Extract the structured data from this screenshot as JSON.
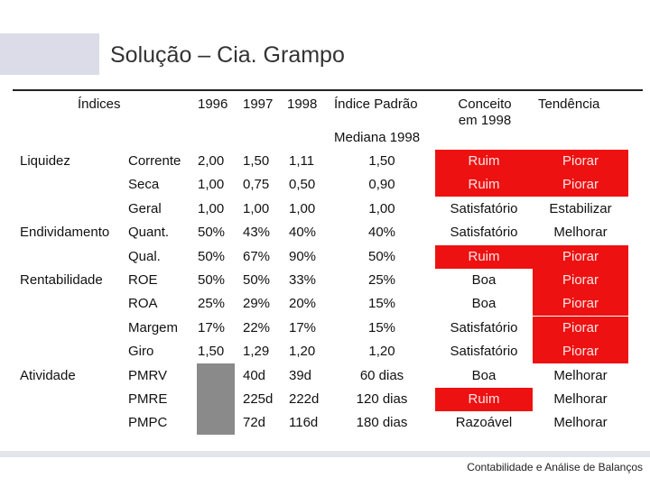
{
  "title": "Solução – Cia. Grampo",
  "headers": {
    "indices": "Índices",
    "y1996": "1996",
    "y1997": "1997",
    "y1998": "1998",
    "padrao": "Índice Padrão",
    "mediana": "Mediana 1998",
    "conceito": "Conceito em 1998",
    "tendencia": "Tendência"
  },
  "rows": [
    {
      "group": "Liquidez",
      "name": "Corrente",
      "v1996": "2,00",
      "v1997": "1,50",
      "v1998": "1,11",
      "padrao": "1,50",
      "conceito": "Ruim",
      "tendencia": "Piorar",
      "conceito_red": true,
      "tendencia_red": true
    },
    {
      "group": "",
      "name": "Seca",
      "v1996": "1,00",
      "v1997": "0,75",
      "v1998": "0,50",
      "padrao": "0,90",
      "conceito": "Ruim",
      "tendencia": "Piorar",
      "conceito_red": true,
      "tendencia_red": true
    },
    {
      "group": "",
      "name": "Geral",
      "v1996": "1,00",
      "v1997": "1,00",
      "v1998": "1,00",
      "padrao": "1,00",
      "conceito": "Satisfatório",
      "tendencia": "Estabilizar",
      "conceito_red": false,
      "tendencia_red": false
    },
    {
      "group": "Endividamento",
      "name": "Quant.",
      "v1996": "50%",
      "v1997": "43%",
      "v1998": "40%",
      "padrao": "40%",
      "conceito": "Satisfatório",
      "tendencia": "Melhorar",
      "conceito_red": false,
      "tendencia_red": false
    },
    {
      "group": "",
      "name": "Qual.",
      "v1996": "50%",
      "v1997": "67%",
      "v1998": "90%",
      "padrao": "50%",
      "conceito": "Ruim",
      "tendencia": "Piorar",
      "conceito_red": true,
      "tendencia_red": true
    },
    {
      "group": "Rentabilidade",
      "name": "ROE",
      "v1996": "50%",
      "v1997": "50%",
      "v1998": "33%",
      "padrao": "25%",
      "conceito": "Boa",
      "tendencia": "Piorar",
      "conceito_red": false,
      "tendencia_red": true
    },
    {
      "group": "",
      "name": "ROA",
      "v1996": "25%",
      "v1997": "29%",
      "v1998": "20%",
      "padrao": "15%",
      "conceito": "Boa",
      "tendencia": "Piorar",
      "conceito_red": false,
      "tendencia_red": true
    },
    {
      "group": "",
      "name": "Margem",
      "v1996": "17%",
      "v1997": "22%",
      "v1998": "17%",
      "padrao": "15%",
      "conceito": "Satisfatório",
      "tendencia": "Piorar",
      "conceito_red": false,
      "tendencia_red": true
    },
    {
      "group": "",
      "name": "Giro",
      "v1996": "1,50",
      "v1997": "1,29",
      "v1998": "1,20",
      "padrao": "1,20",
      "conceito": "Satisfatório",
      "tendencia": "Piorar",
      "conceito_red": false,
      "tendencia_red": true
    },
    {
      "group": "Atividade",
      "name": "PMRV",
      "v1996": "",
      "v1997": "40d",
      "v1998": "39d",
      "padrao": "60 dias",
      "conceito": "Boa",
      "tendencia": "Melhorar",
      "conceito_red": false,
      "tendencia_red": false
    },
    {
      "group": "",
      "name": "PMRE",
      "v1996": "",
      "v1997": "225d",
      "v1998": "222d",
      "padrao": "120 dias",
      "conceito": "Ruim",
      "tendencia": "Melhorar",
      "conceito_red": true,
      "tendencia_red": false
    },
    {
      "group": "",
      "name": "PMPC",
      "v1996": "",
      "v1997": "72d",
      "v1998": "116d",
      "padrao": "180 dias",
      "conceito": "Razoável",
      "tendencia": "Melhorar",
      "conceito_red": false,
      "tendencia_red": false
    }
  ],
  "footer": "Contabilidade e Análise de Balanços",
  "colors": {
    "red": "#ee1111",
    "gray": "#8a8a8a",
    "deco": "#dcdce8"
  }
}
